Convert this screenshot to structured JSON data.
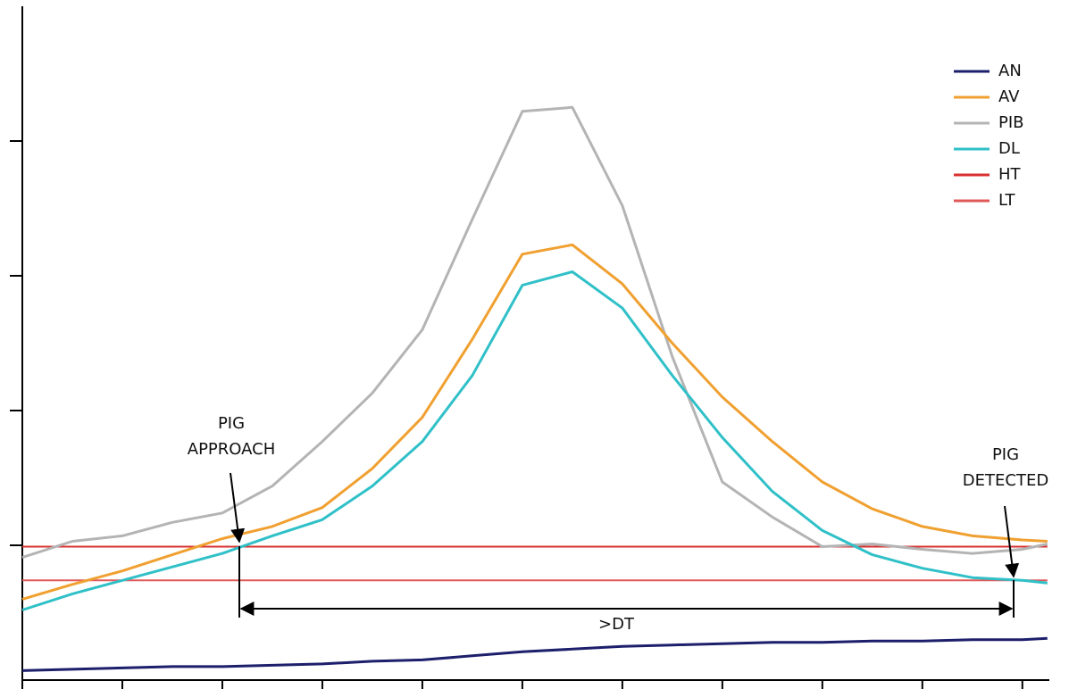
{
  "chart_data": {
    "type": "line",
    "x": [
      0,
      0.5,
      1,
      1.5,
      2,
      2.5,
      3,
      3.5,
      4,
      4.5,
      5,
      5.5,
      6,
      6.5,
      7,
      7.5,
      8,
      8.5,
      9,
      9.5,
      10,
      10.25
    ],
    "series": [
      {
        "name": "AN",
        "color": "#1c1f6b",
        "values": [
          0.07,
          0.08,
          0.09,
          0.1,
          0.1,
          0.11,
          0.12,
          0.14,
          0.15,
          0.18,
          0.21,
          0.23,
          0.25,
          0.26,
          0.27,
          0.28,
          0.28,
          0.29,
          0.29,
          0.3,
          0.3,
          0.31
        ]
      },
      {
        "name": "AV",
        "color": "#f0a030",
        "values": [
          0.6,
          0.71,
          0.81,
          0.93,
          1.05,
          1.14,
          1.28,
          1.57,
          1.95,
          2.53,
          3.16,
          3.23,
          2.94,
          2.5,
          2.1,
          1.77,
          1.47,
          1.27,
          1.14,
          1.07,
          1.04,
          1.03
        ]
      },
      {
        "name": "PIB",
        "color": "#b4b4b4",
        "values": [
          0.91,
          1.03,
          1.07,
          1.17,
          1.24,
          1.44,
          1.77,
          2.13,
          2.6,
          3.42,
          4.22,
          4.25,
          3.52,
          2.4,
          1.47,
          1.21,
          0.99,
          1.01,
          0.97,
          0.94,
          0.97,
          1.01
        ]
      },
      {
        "name": "DL",
        "color": "#30c0c8",
        "values": [
          0.52,
          0.64,
          0.74,
          0.84,
          0.94,
          1.07,
          1.19,
          1.44,
          1.77,
          2.26,
          2.93,
          3.03,
          2.76,
          2.26,
          1.8,
          1.4,
          1.11,
          0.93,
          0.83,
          0.76,
          0.74,
          0.72
        ]
      },
      {
        "name": "HT",
        "color": "#d83030",
        "values": [
          0.99,
          0.99,
          0.99,
          0.99,
          0.99,
          0.99,
          0.99,
          0.99,
          0.99,
          0.99,
          0.99,
          0.99,
          0.99,
          0.99,
          0.99,
          0.99,
          0.99,
          0.99,
          0.99,
          0.99,
          0.99,
          0.99
        ]
      },
      {
        "name": "LT",
        "color": "#e05858",
        "values": [
          0.74,
          0.74,
          0.74,
          0.74,
          0.74,
          0.74,
          0.74,
          0.74,
          0.74,
          0.74,
          0.74,
          0.74,
          0.74,
          0.74,
          0.74,
          0.74,
          0.74,
          0.74,
          0.74,
          0.74,
          0.74,
          0.74
        ]
      }
    ],
    "xlim": [
      0,
      10.27
    ],
    "ylim": [
      0,
      5
    ],
    "xticks": [
      0,
      1,
      2,
      3,
      4,
      5,
      6,
      7,
      8,
      9,
      10
    ],
    "yticks": [
      1,
      2,
      3,
      4
    ],
    "legend": "top-right",
    "annotations": [
      {
        "text": [
          "PIG",
          "APPROACH"
        ]
      },
      {
        "text": [
          "PIG",
          "DETECTED"
        ]
      },
      {
        "text": [
          ">DT"
        ]
      }
    ]
  }
}
